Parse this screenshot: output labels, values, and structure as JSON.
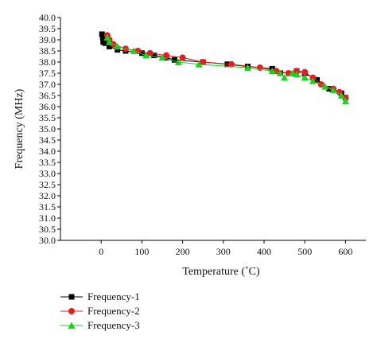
{
  "chart_data": {
    "type": "line",
    "title": "",
    "xlabel": "Temperature (˚C)",
    "ylabel": "Frequency (MHz)",
    "xlim": [
      -100,
      650
    ],
    "ylim": [
      30.0,
      40.0
    ],
    "x_ticks": [
      "0",
      "100",
      "200",
      "300",
      "400",
      "500",
      "600"
    ],
    "y_ticks": [
      "30.0",
      "30.5",
      "31.0",
      "31.5",
      "32.0",
      "32.5",
      "33.0",
      "33.5",
      "34.0",
      "34.5",
      "35.0",
      "35.5",
      "36.0",
      "36.5",
      "37.0",
      "37.5",
      "38.0",
      "38.5",
      "39.0",
      "39.5",
      "40.0"
    ],
    "grid": false,
    "legend_position": "bottom-left",
    "series": [
      {
        "name": "Frequency-1",
        "color": "#000000",
        "marker": "square",
        "points": [
          [
            2,
            39.25
          ],
          [
            4,
            39.1
          ],
          [
            5,
            38.9
          ],
          [
            10,
            38.85
          ],
          [
            20,
            38.7
          ],
          [
            40,
            38.55
          ],
          [
            60,
            38.5
          ],
          [
            100,
            38.4
          ],
          [
            130,
            38.3
          ],
          [
            160,
            38.2
          ],
          [
            180,
            38.1
          ],
          [
            250,
            38.0
          ],
          [
            310,
            37.9
          ],
          [
            360,
            37.8
          ],
          [
            420,
            37.7
          ],
          [
            440,
            37.5
          ],
          [
            480,
            37.6
          ],
          [
            500,
            37.5
          ],
          [
            530,
            37.2
          ],
          [
            560,
            36.8
          ],
          [
            590,
            36.6
          ],
          [
            600,
            36.4
          ]
        ]
      },
      {
        "name": "Frequency-2",
        "color": "#e02020",
        "marker": "circle",
        "points": [
          [
            15,
            39.2
          ],
          [
            20,
            39.0
          ],
          [
            30,
            38.8
          ],
          [
            60,
            38.6
          ],
          [
            90,
            38.5
          ],
          [
            120,
            38.4
          ],
          [
            160,
            38.3
          ],
          [
            200,
            38.2
          ],
          [
            250,
            38.0
          ],
          [
            320,
            37.9
          ],
          [
            390,
            37.75
          ],
          [
            430,
            37.6
          ],
          [
            460,
            37.5
          ],
          [
            480,
            37.6
          ],
          [
            500,
            37.55
          ],
          [
            520,
            37.3
          ],
          [
            540,
            37.0
          ],
          [
            570,
            36.8
          ],
          [
            585,
            36.65
          ],
          [
            600,
            36.4
          ]
        ]
      },
      {
        "name": "Frequency-3",
        "color": "#22cc22",
        "marker": "triangle",
        "points": [
          [
            15,
            39.1
          ],
          [
            20,
            38.9
          ],
          [
            40,
            38.7
          ],
          [
            80,
            38.5
          ],
          [
            110,
            38.3
          ],
          [
            150,
            38.2
          ],
          [
            190,
            38.0
          ],
          [
            240,
            37.9
          ],
          [
            360,
            37.75
          ],
          [
            420,
            37.6
          ],
          [
            440,
            37.5
          ],
          [
            450,
            37.3
          ],
          [
            470,
            37.5
          ],
          [
            480,
            37.45
          ],
          [
            500,
            37.3
          ],
          [
            520,
            37.15
          ],
          [
            550,
            36.9
          ],
          [
            570,
            36.75
          ],
          [
            590,
            36.5
          ],
          [
            600,
            36.25
          ]
        ]
      }
    ]
  }
}
